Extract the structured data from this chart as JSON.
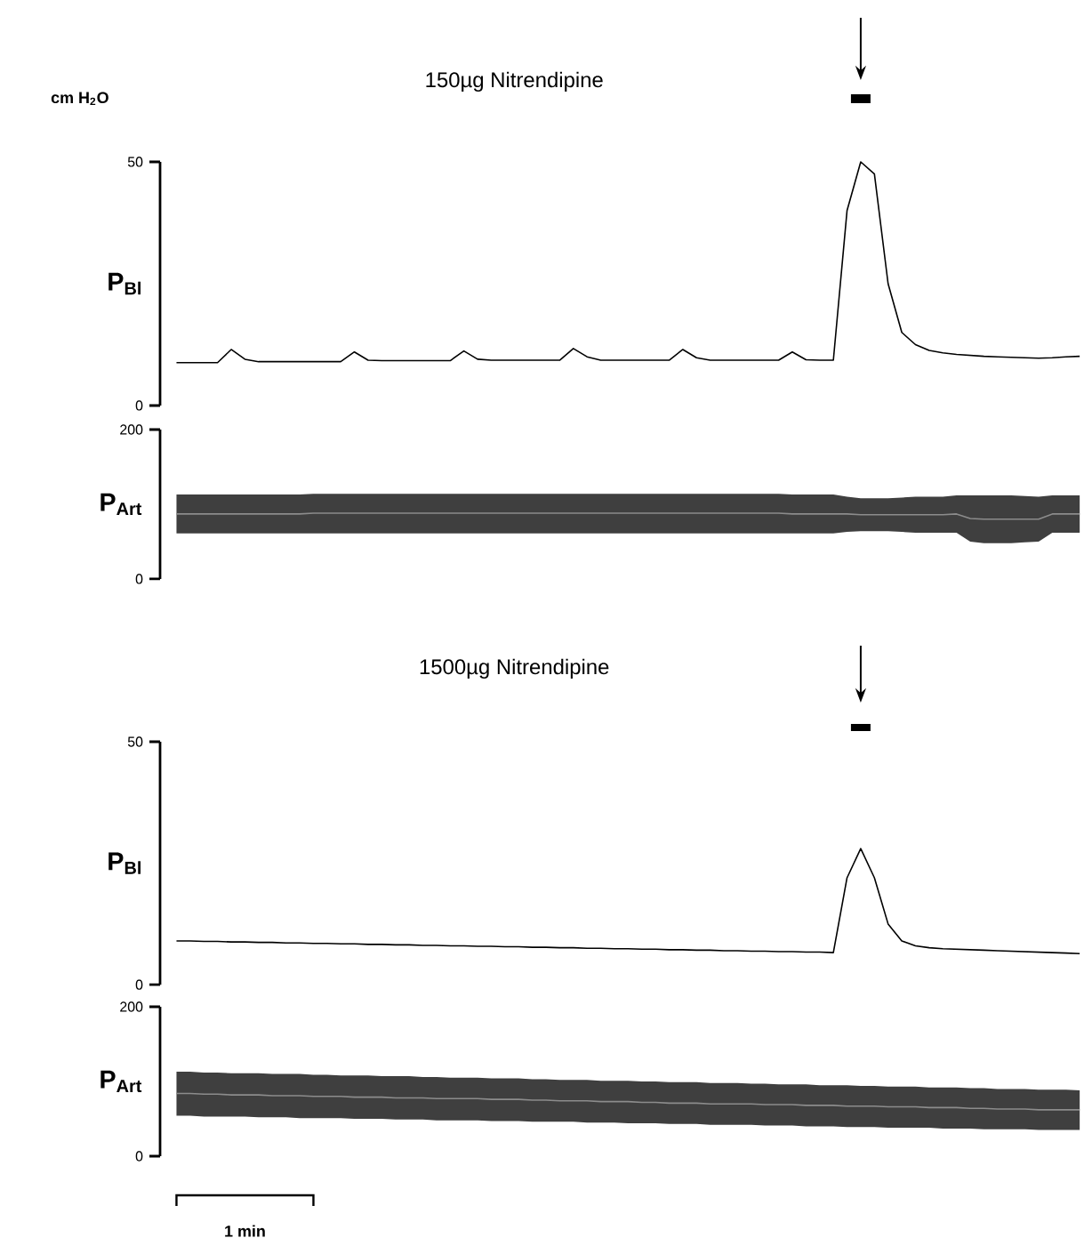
{
  "chart_data": [
    {
      "type": "line",
      "title": "150µg Nitrendipine",
      "ylabel": "P$_{Bl}$",
      "annotations": [
        "cm H$_{2}$O"
      ],
      "categories": [
        null,
        null,
        null,
        null,
        null,
        null,
        null,
        null,
        null,
        null,
        null,
        null,
        null,
        null,
        null,
        null,
        null,
        null,
        null,
        null,
        null,
        null,
        null,
        null,
        null,
        null,
        null,
        null,
        null,
        null,
        null,
        null,
        null,
        null,
        null,
        null,
        null,
        null,
        null,
        null,
        null,
        null,
        null,
        null,
        null,
        null,
        null,
        null,
        null,
        null,
        null,
        null,
        null,
        null,
        null,
        null,
        null,
        null,
        null,
        null,
        null,
        null,
        null,
        null,
        null,
        null,
        null
      ],
      "values": [
        8.8,
        8.8,
        8.8,
        8.8,
        11.5,
        9.5,
        9.0,
        9.0,
        9.0,
        9.0,
        9.0,
        9.0,
        9.0,
        11.0,
        9.3,
        9.2,
        9.2,
        9.2,
        9.2,
        9.2,
        9.2,
        11.2,
        9.5,
        9.3,
        9.3,
        9.3,
        9.3,
        9.3,
        9.3,
        11.7,
        10.0,
        9.3,
        9.3,
        9.3,
        9.3,
        9.3,
        9.3,
        11.5,
        9.8,
        9.3,
        9.3,
        9.3,
        9.3,
        9.3,
        9.3,
        11.0,
        9.4,
        9.3,
        9.3,
        40,
        50,
        47.5,
        25,
        15,
        12.5,
        11.3,
        10.8,
        10.5,
        10.3,
        10.1,
        10.0,
        9.9,
        9.8,
        9.7,
        9.8,
        10.0,
        10.1
      ],
      "color": "#000000",
      "ylim": [
        0,
        50
      ],
      "yticks": [
        0,
        50
      ],
      "tick_labels": "y"
    },
    {
      "type": "line",
      "ylabel": "P$_{Art}$",
      "categories": [
        null,
        null,
        null,
        null,
        null,
        null,
        null,
        null,
        null,
        null,
        null,
        null,
        null,
        null,
        null,
        null,
        null,
        null,
        null,
        null,
        null,
        null,
        null,
        null,
        null,
        null,
        null,
        null,
        null,
        null,
        null,
        null,
        null,
        null,
        null,
        null,
        null,
        null,
        null,
        null,
        null,
        null,
        null,
        null,
        null,
        null,
        null,
        null,
        null,
        null,
        null,
        null,
        null,
        null,
        null,
        null,
        null,
        null,
        null,
        null,
        null,
        null,
        null,
        null,
        null,
        null,
        null
      ],
      "series": [
        {
          "color": "#8c8c8c",
          "values": [
            87,
            87,
            87,
            87,
            87,
            87,
            87,
            87,
            87,
            87,
            88,
            88,
            88,
            88,
            88,
            88,
            88,
            88,
            88,
            88,
            88,
            88,
            88,
            88,
            88,
            88,
            88,
            88,
            88,
            88,
            88,
            88,
            88,
            88,
            88,
            88,
            88,
            88,
            88,
            88,
            88,
            88,
            88,
            88,
            88,
            87,
            87,
            87,
            87,
            87,
            86,
            86,
            86,
            86,
            86,
            86,
            86,
            87,
            81,
            80,
            80,
            80,
            80,
            80,
            87,
            87,
            87
          ],
          "lower": [
            61,
            61,
            61,
            61,
            61,
            61,
            61,
            61,
            61,
            61,
            61,
            61,
            61,
            61,
            61,
            61,
            61,
            61,
            61,
            61,
            61,
            61,
            61,
            61,
            61,
            61,
            61,
            61,
            61,
            61,
            61,
            61,
            61,
            61,
            61,
            61,
            61,
            61,
            61,
            61,
            61,
            61,
            61,
            61,
            61,
            61,
            61,
            61,
            61,
            63,
            64,
            64,
            64,
            63,
            62,
            62,
            62,
            62,
            50,
            48,
            48,
            48,
            49,
            50,
            62,
            62,
            62
          ],
          "upper": [
            113,
            113,
            113,
            113,
            113,
            113,
            113,
            113,
            113,
            113,
            114,
            114,
            114,
            114,
            114,
            114,
            114,
            114,
            114,
            114,
            114,
            114,
            114,
            114,
            114,
            114,
            114,
            114,
            114,
            114,
            114,
            114,
            114,
            114,
            114,
            114,
            114,
            114,
            114,
            114,
            114,
            114,
            114,
            114,
            114,
            113,
            113,
            113,
            113,
            110,
            108,
            108,
            108,
            109,
            110,
            110,
            110,
            112,
            112,
            112,
            112,
            112,
            111,
            110,
            112,
            112,
            112
          ]
        }
      ],
      "ylim": [
        0,
        200
      ],
      "yticks": [
        0,
        200
      ],
      "tick_labels": "y"
    },
    {
      "type": "line",
      "title": "1500µg Nitrendipine",
      "ylabel": "P$_{Bl}$",
      "categories": [
        null,
        null,
        null,
        null,
        null,
        null,
        null,
        null,
        null,
        null,
        null,
        null,
        null,
        null,
        null,
        null,
        null,
        null,
        null,
        null,
        null,
        null,
        null,
        null,
        null,
        null,
        null,
        null,
        null,
        null,
        null,
        null,
        null,
        null,
        null,
        null,
        null,
        null,
        null,
        null,
        null,
        null,
        null,
        null,
        null,
        null,
        null,
        null,
        null,
        null,
        null,
        null,
        null,
        null,
        null,
        null,
        null,
        null,
        null,
        null,
        null,
        null,
        null,
        null,
        null,
        null,
        null
      ],
      "values": [
        9.0,
        9.0,
        8.9,
        8.9,
        8.8,
        8.8,
        8.7,
        8.7,
        8.6,
        8.6,
        8.5,
        8.5,
        8.4,
        8.4,
        8.3,
        8.3,
        8.2,
        8.2,
        8.1,
        8.1,
        8.0,
        8.0,
        7.9,
        7.9,
        7.8,
        7.8,
        7.7,
        7.7,
        7.6,
        7.6,
        7.5,
        7.5,
        7.4,
        7.4,
        7.3,
        7.3,
        7.2,
        7.2,
        7.1,
        7.1,
        7.0,
        7.0,
        6.9,
        6.9,
        6.8,
        6.8,
        6.7,
        6.7,
        6.6,
        22,
        28,
        22,
        12.5,
        9.0,
        8.0,
        7.6,
        7.4,
        7.3,
        7.2,
        7.1,
        7.0,
        6.9,
        6.8,
        6.7,
        6.6,
        6.5,
        6.4
      ],
      "color": "#000000",
      "ylim": [
        0,
        50
      ],
      "yticks": [
        0,
        50
      ],
      "tick_labels": "y"
    },
    {
      "type": "line",
      "ylabel": "P$_{Art}$",
      "annotations": [
        "1 min"
      ],
      "categories": [
        null,
        null,
        null,
        null,
        null,
        null,
        null,
        null,
        null,
        null,
        null,
        null,
        null,
        null,
        null,
        null,
        null,
        null,
        null,
        null,
        null,
        null,
        null,
        null,
        null,
        null,
        null,
        null,
        null,
        null,
        null,
        null,
        null,
        null,
        null,
        null,
        null,
        null,
        null,
        null,
        null,
        null,
        null,
        null,
        null,
        null,
        null,
        null,
        null,
        null,
        null,
        null,
        null,
        null,
        null,
        null,
        null,
        null,
        null,
        null,
        null,
        null,
        null,
        null,
        null,
        null,
        null
      ],
      "series": [
        {
          "color": "#8c8c8c",
          "values": [
            84,
            84,
            83,
            83,
            82,
            82,
            82,
            81,
            81,
            81,
            80,
            80,
            80,
            79,
            79,
            79,
            78,
            78,
            78,
            77,
            77,
            77,
            77,
            76,
            76,
            76,
            75,
            75,
            74,
            74,
            74,
            73,
            73,
            73,
            72,
            72,
            71,
            71,
            71,
            70,
            70,
            70,
            70,
            69,
            69,
            69,
            68,
            68,
            68,
            67,
            67,
            67,
            66,
            66,
            66,
            65,
            65,
            65,
            64,
            64,
            63,
            63,
            63,
            62,
            62,
            62,
            62
          ],
          "lower": [
            54,
            54,
            53,
            53,
            53,
            53,
            52,
            52,
            52,
            51,
            51,
            51,
            51,
            50,
            50,
            50,
            49,
            49,
            49,
            48,
            48,
            48,
            48,
            47,
            47,
            47,
            46,
            46,
            46,
            46,
            45,
            45,
            45,
            44,
            44,
            44,
            43,
            43,
            43,
            42,
            42,
            42,
            42,
            41,
            41,
            41,
            40,
            40,
            40,
            39,
            39,
            39,
            38,
            38,
            38,
            38,
            37,
            37,
            37,
            36,
            36,
            36,
            36,
            35,
            35,
            35,
            35
          ],
          "upper": [
            113,
            113,
            112,
            112,
            111,
            111,
            111,
            110,
            110,
            110,
            109,
            109,
            108,
            108,
            108,
            107,
            107,
            107,
            106,
            106,
            105,
            105,
            105,
            104,
            104,
            104,
            103,
            103,
            102,
            102,
            102,
            101,
            101,
            101,
            100,
            100,
            99,
            99,
            99,
            98,
            98,
            98,
            97,
            97,
            96,
            96,
            96,
            95,
            95,
            95,
            94,
            94,
            93,
            93,
            93,
            92,
            92,
            92,
            91,
            91,
            90,
            90,
            90,
            89,
            89,
            89,
            88
          ]
        }
      ],
      "ylim": [
        0,
        200
      ],
      "yticks": [
        0,
        200
      ],
      "tick_labels": "y"
    }
  ]
}
